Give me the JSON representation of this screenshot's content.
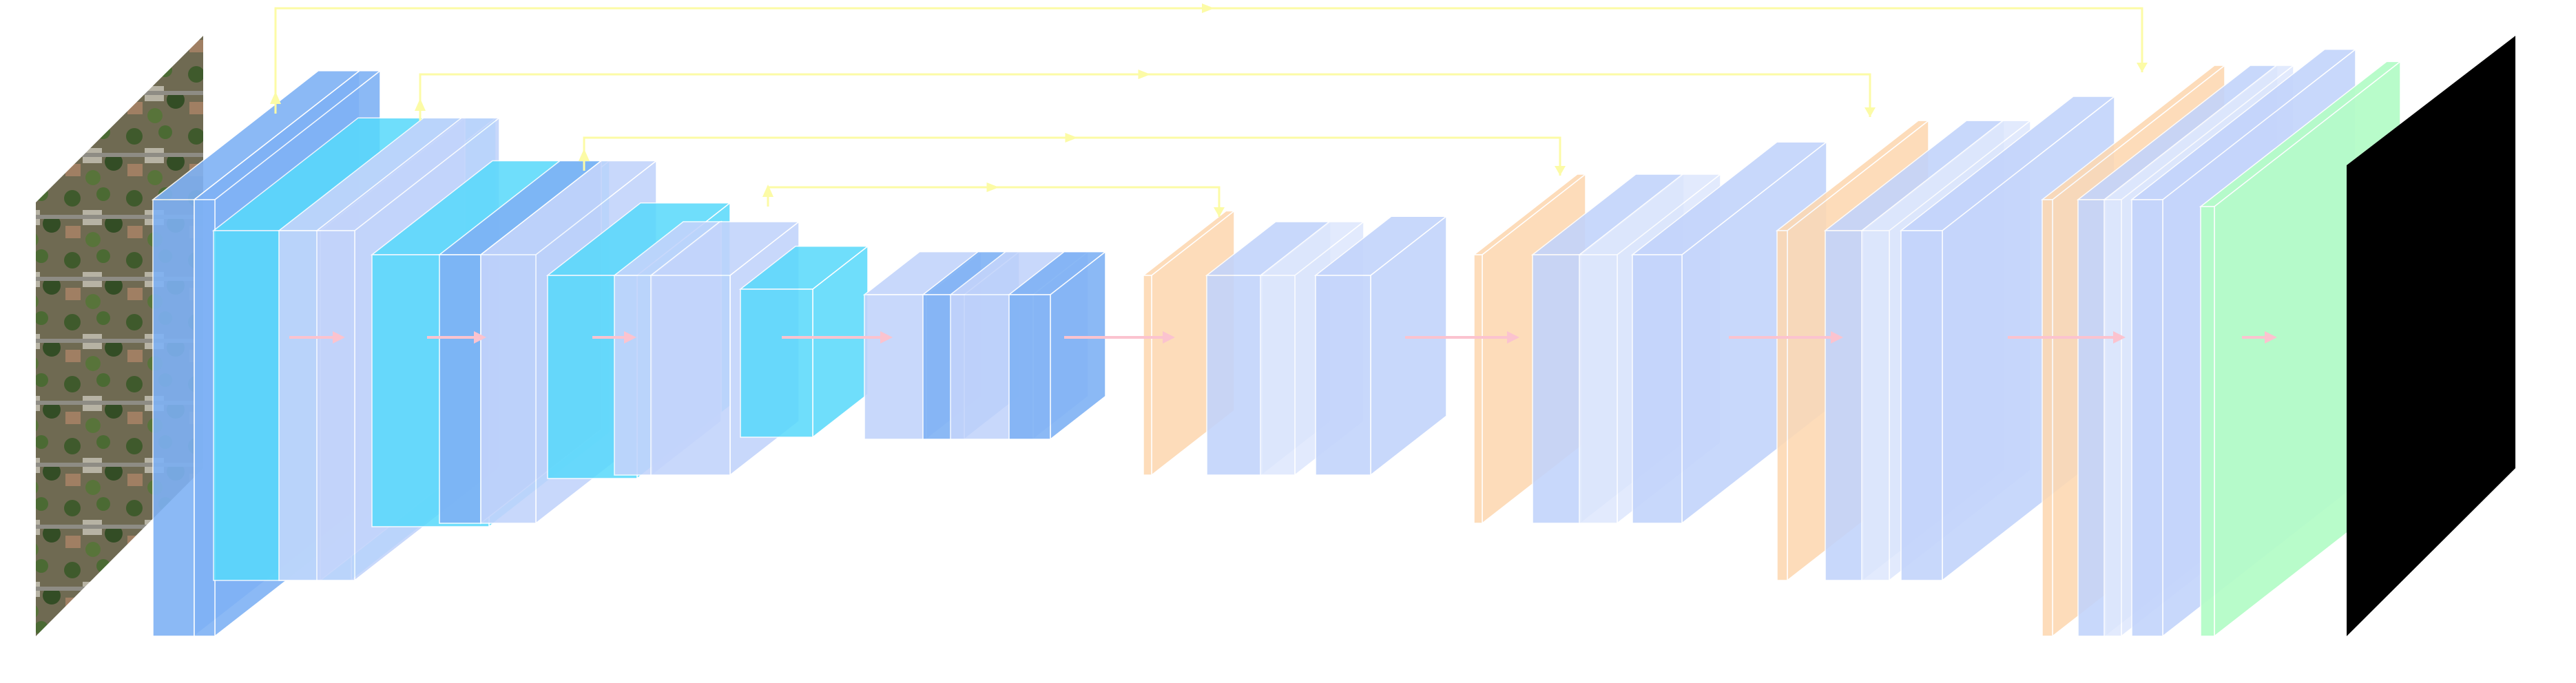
{
  "diagram": {
    "type": "u-net-architecture",
    "input": {
      "kind": "aerial-image",
      "icon": "aerial-photo-thumbnail"
    },
    "output": {
      "kind": "binary-segmentation-mask",
      "icon": "mask-thumbnail"
    },
    "colors": {
      "conv": "#7fb2f5",
      "conv_light": "#c3d4fb",
      "activation": "#57d9fb",
      "pool_dark": "#6aa7f3",
      "upsample": "#fdd9b3",
      "final": "#b5fcc8",
      "skip_arrow": "#fcfba6",
      "flow_arrow": "#fbc3cf",
      "mask": "#000000"
    },
    "encoder_blocks": 4,
    "bottleneck_blocks": 1,
    "decoder_blocks": 4,
    "skip_connections": 4
  }
}
